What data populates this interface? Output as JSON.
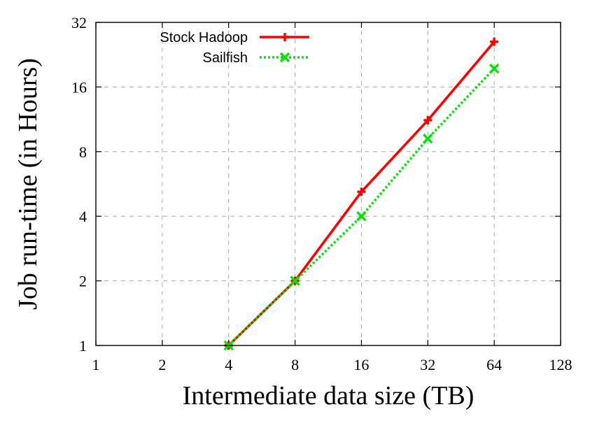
{
  "chart_data": {
    "type": "line",
    "title": "",
    "xlabel": "Intermediate data size (TB)",
    "ylabel": "Job run-time (in Hours)",
    "xscale": "log2",
    "yscale": "log2",
    "xlim": [
      1,
      128
    ],
    "ylim": [
      1,
      32
    ],
    "xticks": [
      1,
      2,
      4,
      8,
      16,
      32,
      64,
      128
    ],
    "yticks": [
      1,
      2,
      4,
      8,
      16,
      32
    ],
    "xtick_labels": [
      "1",
      "2",
      "4",
      "8",
      "16",
      "32",
      "64",
      "128"
    ],
    "ytick_labels": [
      "1",
      "2",
      "4",
      "8",
      "16",
      "32"
    ],
    "grid": true,
    "legend_position": "top-left",
    "x": [
      4,
      8,
      16,
      32,
      64
    ],
    "series": [
      {
        "name": "Stock Hadoop",
        "values": [
          1.0,
          2.0,
          5.2,
          11.2,
          26.0
        ],
        "color": "#ff0000",
        "marker": "plus",
        "line": "solid"
      },
      {
        "name": "Sailfish",
        "values": [
          1.0,
          2.0,
          4.0,
          9.2,
          19.5
        ],
        "color": "#00e600",
        "marker": "x",
        "line": "dotted"
      }
    ]
  }
}
